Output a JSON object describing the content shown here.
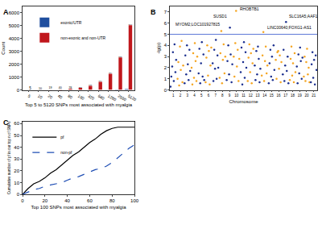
{
  "chart_data": [
    {
      "panel": "A",
      "type": "bar",
      "categories": [
        "5",
        "10",
        "20",
        "40",
        "80",
        "160",
        "320",
        "640",
        "1280",
        "2560",
        "5120"
      ],
      "x_label": "Top 5 to 5120 SNPs most associated with myalgia",
      "y_label": "Count",
      "ylim": [
        0,
        6500
      ],
      "yticks": [
        0,
        1000,
        2000,
        3000,
        4000,
        5000,
        6000
      ],
      "legend": "top-left",
      "series": [
        {
          "name": "exonic/UTR",
          "color": "#1f4e9e",
          "values": [
            0,
            0,
            1,
            0,
            2,
            3,
            5,
            6,
            16,
            34,
            74
          ]
        },
        {
          "name": "non-exonic and non-UTR",
          "color": "#c0171c",
          "values": [
            5,
            10,
            19,
            40,
            78,
            157,
            315,
            634,
            1264,
            2526,
            5046
          ],
          "data_labels": true
        }
      ]
    },
    {
      "panel": "B",
      "type": "scatter",
      "x_label": "Chromosome",
      "y_label": "-lg(p)",
      "xlim": [
        0.5,
        21.5
      ],
      "xticks": [
        1,
        2,
        3,
        4,
        5,
        6,
        7,
        8,
        9,
        10,
        11,
        12,
        13,
        14,
        15,
        16,
        17,
        18,
        19,
        20,
        21
      ],
      "ylim": [
        0,
        7.5
      ],
      "yticks": [
        0,
        1,
        2,
        3,
        4,
        5,
        6,
        7
      ],
      "threshold": 5,
      "threshold_color": "#3355cc",
      "series": [
        {
          "color": "#1b2f8f",
          "x": [
            0.6,
            0.71,
            0.83,
            0.94,
            1.06,
            1.17,
            1.29,
            1.4
          ],
          "values": [
            0.3,
            1.2,
            2.1,
            3.4,
            0.8,
            4.1,
            1.6,
            2.7
          ]
        },
        {
          "color": "#f5a623",
          "x": [
            1.6,
            1.71,
            1.83,
            1.94,
            2.06,
            2.17,
            2.29,
            2.4
          ],
          "values": [
            1.0,
            2.5,
            0.4,
            3.9,
            1.8,
            4.4,
            0.7,
            2.2
          ]
        },
        {
          "color": "#1b2f8f",
          "x": [
            2.6,
            2.71,
            2.83,
            2.94,
            3.06,
            3.17,
            3.29,
            3.4
          ],
          "values": [
            0.6,
            3.1,
            1.4,
            4.0,
            2.3,
            0.9,
            3.6,
            1.7
          ]
        },
        {
          "color": "#f5a623",
          "x": [
            3.6,
            3.71,
            3.83,
            3.94,
            4.06,
            4.17,
            4.29,
            4.4
          ],
          "values": [
            2.0,
            0.5,
            3.3,
            1.1,
            4.2,
            2.6,
            0.8,
            3.0
          ]
        },
        {
          "color": "#1b2f8f",
          "x": [
            4.6,
            4.71,
            4.83,
            4.94,
            5.06,
            5.17,
            5.29,
            5.4
          ],
          "values": [
            1.5,
            3.7,
            0.6,
            2.4,
            4.3,
            1.2,
            3.2,
            0.9
          ]
        },
        {
          "color": "#f5a623",
          "x": [
            5.6,
            5.71,
            5.83,
            5.94,
            6.06,
            6.17,
            6.29,
            6.4
          ],
          "values": [
            0.7,
            2.9,
            4.0,
            1.3,
            3.5,
            0.5,
            2.2,
            3.8
          ]
        },
        {
          "color": "#1b2f8f",
          "x": [
            6.6,
            6.71,
            6.83,
            6.94,
            7.06,
            7.17,
            7.29,
            7.4
          ],
          "values": [
            2.4,
            0.8,
            3.6,
            1.9,
            4.5,
            1.0,
            3.1,
            2.0
          ]
        },
        {
          "color": "#f5a623",
          "x": [
            7.6,
            7.71,
            7.83,
            7.94,
            8.06,
            8.17,
            8.29,
            8.4
          ],
          "values": [
            1.1,
            3.3,
            5.3,
            0.6,
            2.7,
            4.1,
            1.5,
            3.0
          ]
        },
        {
          "color": "#1b2f8f",
          "x": [
            8.6,
            8.71,
            8.83,
            8.94,
            9.06,
            9.17,
            9.29,
            9.4
          ],
          "values": [
            0.9,
            2.6,
            4.0,
            1.4,
            5.6,
            3.2,
            0.7,
            2.3
          ]
        },
        {
          "color": "#f5a623",
          "x": [
            9.6,
            9.71,
            9.83,
            9.94,
            10.06,
            10.17,
            10.29,
            10.4
          ],
          "values": [
            3.0,
            1.2,
            4.2,
            7.1,
            2.1,
            3.6,
            0.8,
            2.8
          ]
        },
        {
          "color": "#1b2f8f",
          "x": [
            10.6,
            10.71,
            10.83,
            10.94,
            11.06,
            11.17,
            11.29,
            11.4
          ],
          "values": [
            1.6,
            3.8,
            0.5,
            2.5,
            4.3,
            1.1,
            3.4,
            2.0
          ]
        },
        {
          "color": "#f5a623",
          "x": [
            11.6,
            11.71,
            11.83,
            11.94,
            12.06,
            12.17,
            12.29,
            12.4
          ],
          "values": [
            0.8,
            2.9,
            4.1,
            1.6,
            3.3,
            0.6,
            2.4,
            3.7
          ]
        },
        {
          "color": "#1b2f8f",
          "x": [
            12.6,
            12.71,
            12.83,
            12.94,
            13.06,
            13.17,
            13.29,
            13.4
          ],
          "values": [
            2.2,
            0.9,
            3.5,
            1.4,
            3.9,
            2.8,
            0.7,
            1.9
          ]
        },
        {
          "color": "#f5a623",
          "x": [
            13.6,
            13.71,
            13.83,
            13.94,
            14.06,
            14.17,
            14.29,
            14.4
          ],
          "values": [
            1.3,
            3.1,
            5.2,
            0.8,
            2.6,
            3.9,
            1.5,
            2.2
          ]
        },
        {
          "color": "#1b2f8f",
          "x": [
            14.6,
            14.71,
            14.83,
            14.94,
            15.06,
            15.17,
            15.29,
            15.4
          ],
          "values": [
            0.6,
            2.4,
            3.6,
            1.2,
            3.0,
            0.9,
            4.0,
            1.8
          ]
        },
        {
          "color": "#f5a623",
          "x": [
            15.6,
            15.71,
            15.83,
            15.94,
            16.06,
            16.17,
            16.29,
            16.4
          ],
          "values": [
            2.7,
            1.0,
            3.4,
            3.5,
            1.9,
            3.1,
            0.7,
            2.5
          ]
        },
        {
          "color": "#1b2f8f",
          "x": [
            16.6,
            16.71,
            16.83,
            16.94,
            17.06,
            17.17,
            17.29,
            17.4
          ],
          "values": [
            1.4,
            3.6,
            0.8,
            2.2,
            6.1,
            1.7,
            3.0,
            0.6
          ]
        },
        {
          "color": "#f5a623",
          "x": [
            17.6,
            17.71,
            17.83,
            17.94,
            18.06,
            18.17,
            18.29,
            18.4
          ],
          "values": [
            0.9,
            2.8,
            3.9,
            1.3,
            2.4,
            0.7,
            3.3,
            1.6
          ]
        },
        {
          "color": "#1b2f8f",
          "x": [
            18.6,
            18.71,
            18.83,
            18.94,
            19.06,
            19.17,
            19.29,
            19.4
          ],
          "values": [
            2.1,
            0.6,
            3.2,
            1.5,
            3.8,
            2.6,
            1.0,
            2.9
          ]
        },
        {
          "color": "#f5a623",
          "x": [
            19.6,
            19.71,
            19.83,
            19.94,
            20.06,
            20.17,
            20.29,
            20.4
          ],
          "values": [
            1.2,
            3.0,
            0.8,
            2.5,
            3.7,
            1.4,
            2.0,
            0.7
          ]
        },
        {
          "color": "#1b2f8f",
          "x": [
            20.6,
            20.71,
            20.83,
            20.94,
            21.06,
            21.17,
            21.29,
            21.4
          ],
          "values": [
            0.7,
            2.3,
            3.4,
            1.1,
            2.7,
            0.5,
            3.1,
            1.8
          ]
        }
      ],
      "annotations": [
        {
          "text": "MYOM2;LOC101927815",
          "x": 7.8,
          "y": 5.9,
          "anchor": "right"
        },
        {
          "text": "SUSD1",
          "x": 8.9,
          "y": 6.6,
          "anchor": "right"
        },
        {
          "text": "RHOBTB1",
          "x": 10.2,
          "y": 7.25,
          "anchor": "left"
        },
        {
          "text": "SLC16A5;AAF1",
          "x": 17.2,
          "y": 6.6,
          "anchor": "left"
        },
        {
          "text": "LINC00640;FOXG1-AS1",
          "x": 14.2,
          "y": 5.6,
          "anchor": "left"
        }
      ]
    },
    {
      "panel": "C",
      "type": "line",
      "x": [
        0,
        5,
        10,
        15,
        20,
        25,
        30,
        35,
        40,
        45,
        50,
        55,
        60,
        65,
        70,
        75,
        80,
        85,
        90,
        95,
        100
      ],
      "x_label": "Top 100 SNPs most associated with myalgia",
      "y_label": "Cumulative number of pf in our top n of SNPs",
      "xlim": [
        0,
        100
      ],
      "xticks": [
        0,
        20,
        40,
        60,
        80,
        100
      ],
      "ylim": [
        0,
        62
      ],
      "yticks": [
        0,
        10,
        20,
        30,
        40,
        50,
        60
      ],
      "legend": "top-left",
      "series": [
        {
          "name": "pf",
          "color": "#000000",
          "line_style": "solid",
          "values": [
            0,
            5,
            9,
            11,
            14,
            18,
            21,
            25,
            29,
            33,
            36,
            40,
            44,
            47,
            51,
            54,
            56,
            57,
            57,
            57,
            57
          ]
        },
        {
          "name": "non-pf",
          "color": "#1f4eb4",
          "line_style": "dash",
          "values": [
            0,
            2,
            4,
            5,
            7,
            8,
            9,
            10,
            12,
            14,
            15,
            17,
            19,
            21,
            22,
            24,
            27,
            31,
            35,
            39,
            42
          ]
        }
      ]
    }
  ]
}
